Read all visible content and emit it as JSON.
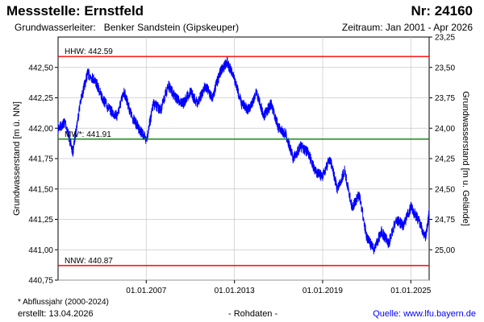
{
  "header": {
    "title": "Messstelle: Ernstfeld",
    "number": "Nr: 24160",
    "aquifer_label": "Grundwasserleiter:",
    "aquifer_name": "Benker Sandstein (Gipskeuper)",
    "period": "Zeitraum: Jan 2001 - Apr 2026"
  },
  "footer": {
    "note": "* Abflussjahr (2000-2024)",
    "created": "erstellt:  13.04.2026",
    "data_kind": "- Rohdaten -",
    "source": "Quelle: www.lfu.bayern.de"
  },
  "colors": {
    "series": "#0000ff",
    "hhw": "#ff0000",
    "nnw": "#ff0000",
    "mw": "#008000",
    "grid": "#c8c8c8"
  },
  "chart_data": {
    "type": "line",
    "ylabel_left": "Grundwasserstand [m ü. NN]",
    "ylabel_right": "Grundwasserstand [m u. Gelände]",
    "x_range": [
      "2001-01",
      "2026-04"
    ],
    "ylim_left": [
      440.75,
      442.75
    ],
    "ylim_right": [
      23.25,
      25.25
    ],
    "grid": true,
    "y_ticks_left": [
      "440,75",
      "441,00",
      "441,25",
      "441,50",
      "441,75",
      "442,00",
      "442,25",
      "442,50"
    ],
    "y_ticks_right": [
      "23,25",
      "23,50",
      "23,75",
      "24,00",
      "24,25",
      "24,50",
      "24,75",
      "25,00"
    ],
    "x_ticks": [
      {
        "date": "2007-01-01",
        "label": "01.01.2007"
      },
      {
        "date": "2013-01-01",
        "label": "01.01.2013"
      },
      {
        "date": "2019-01-01",
        "label": "01.01.2019"
      },
      {
        "date": "2025-01-01",
        "label": "01.01.2025"
      }
    ],
    "reference_lines": [
      {
        "name": "HHW",
        "label": "HHW: 442.59",
        "value": 442.59
      },
      {
        "name": "MW",
        "label": "MW*: 441.91",
        "value": 441.91
      },
      {
        "name": "NNW",
        "label": "NNW: 440.87",
        "value": 440.87
      }
    ],
    "series": [
      {
        "x": [
          "2001-01",
          "2001-07",
          "2002-01",
          "2002-07",
          "2003-01",
          "2003-07",
          "2004-01",
          "2004-07",
          "2005-01",
          "2005-07",
          "2006-01",
          "2006-07",
          "2007-01",
          "2007-07",
          "2008-01",
          "2008-07",
          "2009-01",
          "2009-07",
          "2010-01",
          "2010-07",
          "2011-01",
          "2011-07",
          "2012-01",
          "2012-07",
          "2013-01",
          "2013-07",
          "2014-01",
          "2014-07",
          "2015-01",
          "2015-07",
          "2016-01",
          "2016-07",
          "2017-01",
          "2017-07",
          "2018-01",
          "2018-07",
          "2019-01",
          "2019-07",
          "2020-01",
          "2020-07",
          "2021-01",
          "2021-07",
          "2022-01",
          "2022-07",
          "2023-01",
          "2023-07",
          "2024-01",
          "2024-07",
          "2025-01",
          "2025-07",
          "2026-01",
          "2026-04"
        ],
        "y": [
          442.0,
          442.05,
          441.8,
          442.2,
          442.45,
          442.4,
          442.25,
          442.15,
          442.1,
          442.3,
          442.1,
          442.0,
          441.9,
          442.2,
          442.15,
          442.35,
          442.25,
          442.2,
          442.3,
          442.2,
          442.35,
          442.25,
          442.45,
          442.55,
          442.4,
          442.2,
          442.15,
          442.3,
          442.1,
          442.2,
          442.0,
          441.95,
          441.75,
          441.85,
          441.8,
          441.65,
          441.6,
          441.75,
          441.5,
          441.65,
          441.35,
          441.45,
          441.1,
          441.0,
          441.15,
          441.05,
          441.25,
          441.2,
          441.35,
          441.25,
          441.1,
          441.3
        ]
      }
    ]
  }
}
